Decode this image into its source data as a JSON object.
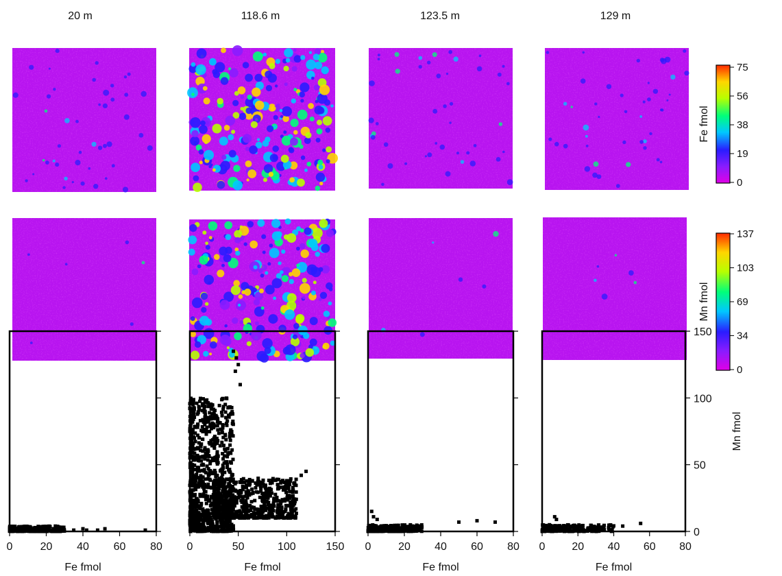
{
  "colors": {
    "map_background": "#b814f0",
    "map_scale": [
      "#e000e6",
      "#8a1cff",
      "#2a1cff",
      "#00c8ff",
      "#00ff7a",
      "#b8ff00",
      "#ffd500",
      "#ff2a00"
    ],
    "scatter_points": "#000000"
  },
  "columns": [
    {
      "depth_label": "20 m"
    },
    {
      "depth_label": "118.6 m"
    },
    {
      "depth_label": "123.5 m"
    },
    {
      "depth_label": "129 m"
    }
  ],
  "colorbars": [
    {
      "label": "Fe fmol",
      "ticks": [
        "75",
        "56",
        "38",
        "19",
        "0"
      ]
    },
    {
      "label": "Mn fmol",
      "ticks": [
        "137",
        "103",
        "69",
        "34",
        "0"
      ]
    }
  ],
  "scatter_ylabel": "Mn fmol",
  "scatter_yticks": [
    "150",
    "100",
    "50",
    "0"
  ],
  "chart_data": [
    {
      "type": "scatter",
      "depth": "20 m",
      "xlabel": "Fe fmol",
      "ylabel": "Mn fmol",
      "xlim": [
        0,
        80
      ],
      "ylim": [
        0,
        150
      ],
      "xticks": [
        "0",
        "20",
        "40",
        "60",
        "80"
      ],
      "clusters": [
        {
          "x_range": [
            0,
            30
          ],
          "y_range": [
            0,
            4
          ],
          "n": 260
        }
      ],
      "x": [
        35,
        40,
        42,
        48,
        52,
        74
      ],
      "y": [
        1,
        2,
        1,
        1,
        2,
        1
      ]
    },
    {
      "type": "scatter",
      "depth": "118.6 m",
      "xlabel": "Fe fmol",
      "ylabel": "Mn fmol",
      "xlim": [
        0,
        150
      ],
      "ylim": [
        0,
        150
      ],
      "xticks": [
        "0",
        "50",
        "100",
        "150"
      ],
      "clusters": [
        {
          "x_range": [
            0,
            45
          ],
          "y_range": [
            0,
            100
          ],
          "n": 900
        },
        {
          "x_range": [
            25,
            110
          ],
          "y_range": [
            10,
            40
          ],
          "n": 700
        }
      ],
      "x": [
        45,
        48,
        50,
        47,
        52,
        120,
        115,
        100
      ],
      "y": [
        135,
        130,
        125,
        120,
        110,
        45,
        42,
        38
      ]
    },
    {
      "type": "scatter",
      "depth": "123.5 m",
      "xlabel": "Fe fmol",
      "ylabel": "Mn fmol",
      "xlim": [
        0,
        80
      ],
      "ylim": [
        0,
        150
      ],
      "xticks": [
        "0",
        "20",
        "40",
        "60",
        "80"
      ],
      "clusters": [
        {
          "x_range": [
            0,
            30
          ],
          "y_range": [
            0,
            5
          ],
          "n": 240
        }
      ],
      "x": [
        2,
        3,
        5,
        50,
        60,
        70
      ],
      "y": [
        15,
        11,
        9,
        7,
        8,
        7
      ]
    },
    {
      "type": "scatter",
      "depth": "129 m",
      "xlabel": "Fe fmol",
      "ylabel": "Mn fmol",
      "xlim": [
        0,
        80
      ],
      "ylim": [
        0,
        150
      ],
      "xticks": [
        "0",
        "20",
        "40",
        "60",
        "80"
      ],
      "clusters": [
        {
          "x_range": [
            0,
            40
          ],
          "y_range": [
            0,
            5
          ],
          "n": 260
        }
      ],
      "x": [
        7,
        8,
        45,
        55
      ],
      "y": [
        11,
        9,
        4,
        6
      ]
    }
  ]
}
